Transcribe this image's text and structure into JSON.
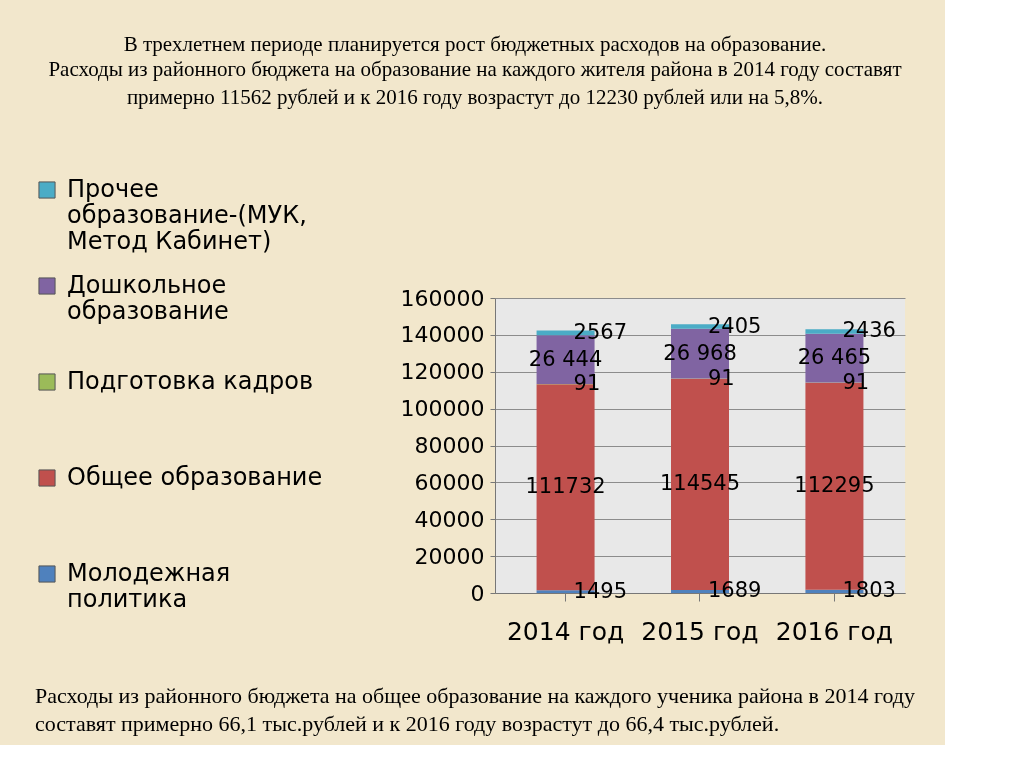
{
  "chart_data": {
    "type": "bar",
    "title": "В трехлетнем периоде планируется рост бюджетных расходов на образование.",
    "subtitle": "Расходы из районного бюджета на образование на каждого жителя района в 2014 году составят примерно 11562 рублей и к 2016 году возрастут до 12230  рублей или на 5,8%.",
    "annotations": [
      "Расходы из районного бюджета на общее образование на каждого ученика района в 2014 году составят  примерно  66,1 тыс.рублей и к 2016 году возрастут до 66,4 тыс.рублей."
    ],
    "categories": [
      "2014 год",
      "2015 год",
      "2016 год"
    ],
    "stacked": true,
    "series": [
      {
        "name": "Молодежная политика",
        "color": "#4f81bd",
        "values": [
          1495,
          1689,
          1803
        ],
        "value_labels": [
          "1495",
          "1689",
          "1803"
        ]
      },
      {
        "name": "Общее образование",
        "color": "#c0504d",
        "values": [
          111732,
          114545,
          112295
        ],
        "value_labels": [
          "111732",
          "114545",
          "112295"
        ]
      },
      {
        "name": "Подготовка кадров",
        "color": "#9bbb59",
        "values": [
          91,
          91,
          91
        ],
        "value_labels": [
          "91",
          "91",
          "91"
        ]
      },
      {
        "name": "Дошкольное образование",
        "color": "#8064a2",
        "values": [
          26444,
          26968,
          26465
        ],
        "value_labels": [
          "26 444",
          "26 968",
          "26 465"
        ]
      },
      {
        "name": "Прочее образование-(МУК, Метод Кабинет)",
        "color": "#4bacc6",
        "values": [
          2567,
          2405,
          2436
        ],
        "value_labels": [
          "2567",
          "2405",
          "2436"
        ]
      }
    ],
    "ylim": [
      0,
      160000
    ],
    "yticks": [
      0,
      20000,
      40000,
      60000,
      80000,
      100000,
      120000,
      140000,
      160000
    ],
    "grid": "y",
    "legend": "left"
  }
}
